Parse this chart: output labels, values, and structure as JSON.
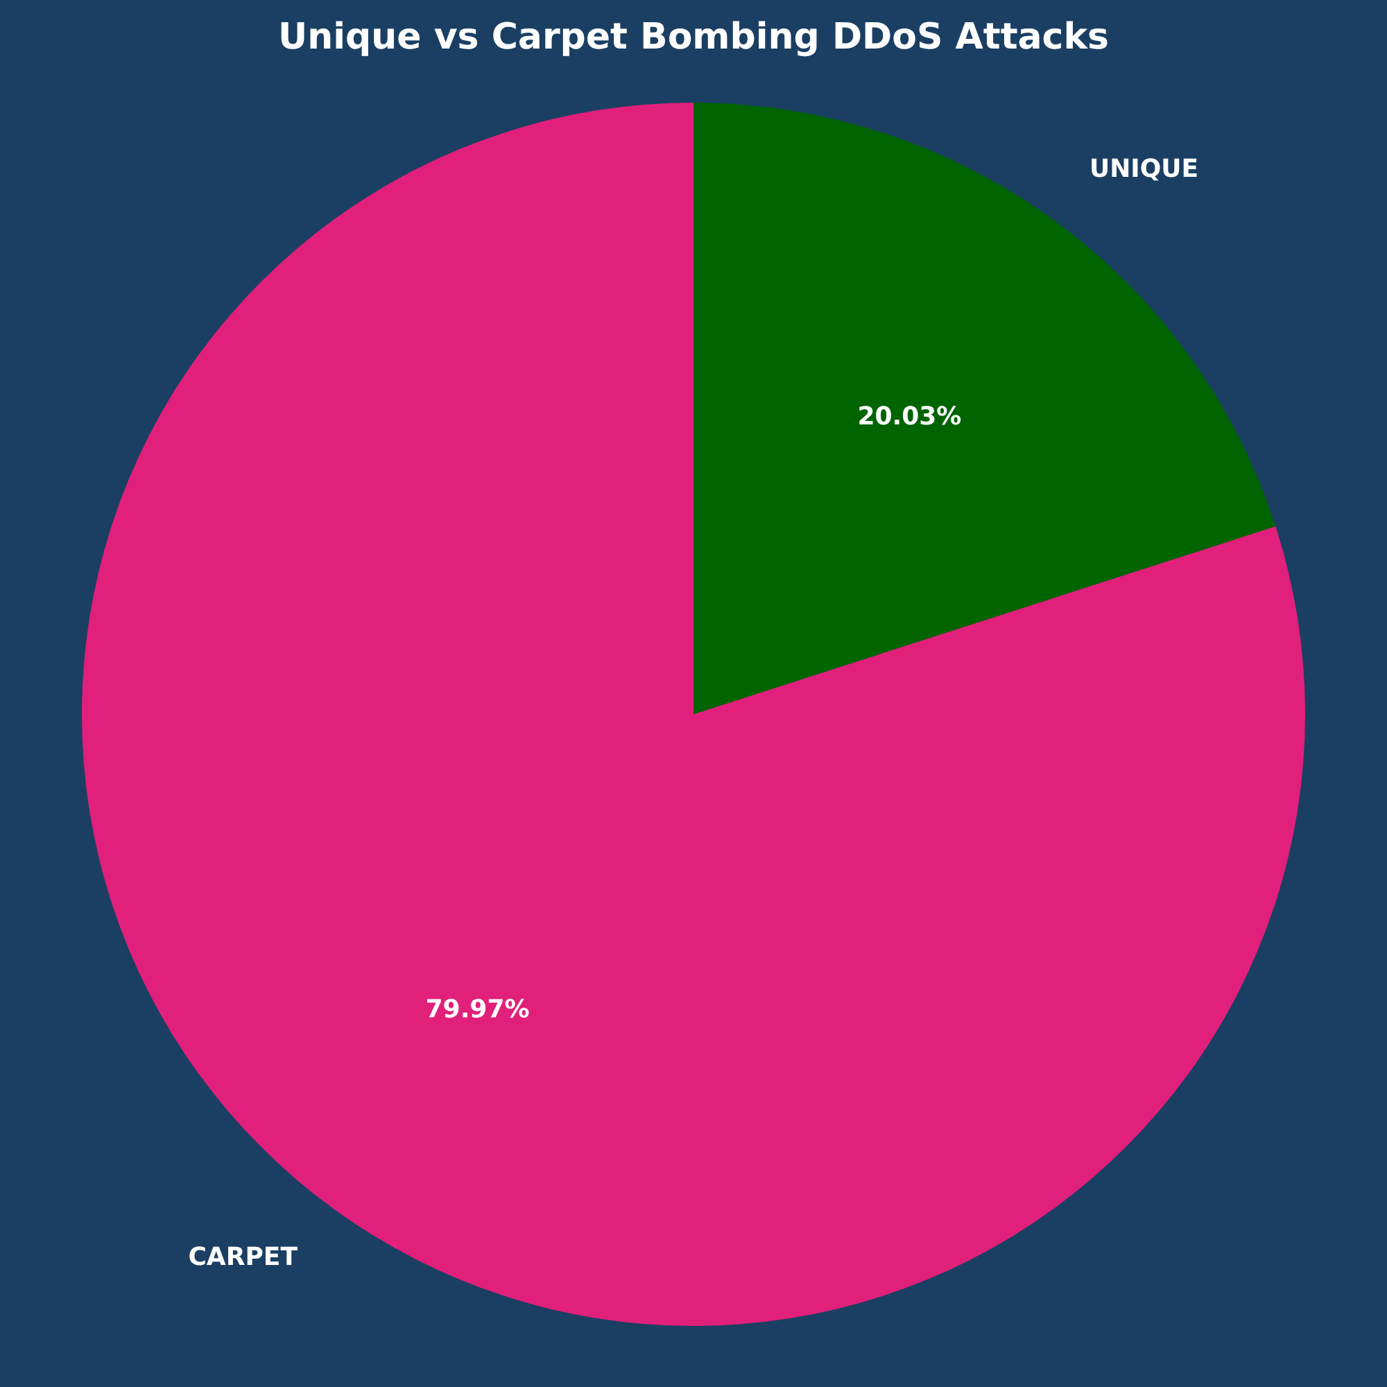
{
  "chart_data": {
    "type": "pie",
    "title": "Unique vs Carpet Bombing DDoS Attacks",
    "categories": [
      "UNIQUE",
      "CARPET"
    ],
    "values": [
      20.03,
      79.97
    ],
    "colors": [
      "#006400",
      "#e0207a"
    ],
    "value_labels": [
      "20.03%",
      "79.97%"
    ],
    "legend": false
  }
}
